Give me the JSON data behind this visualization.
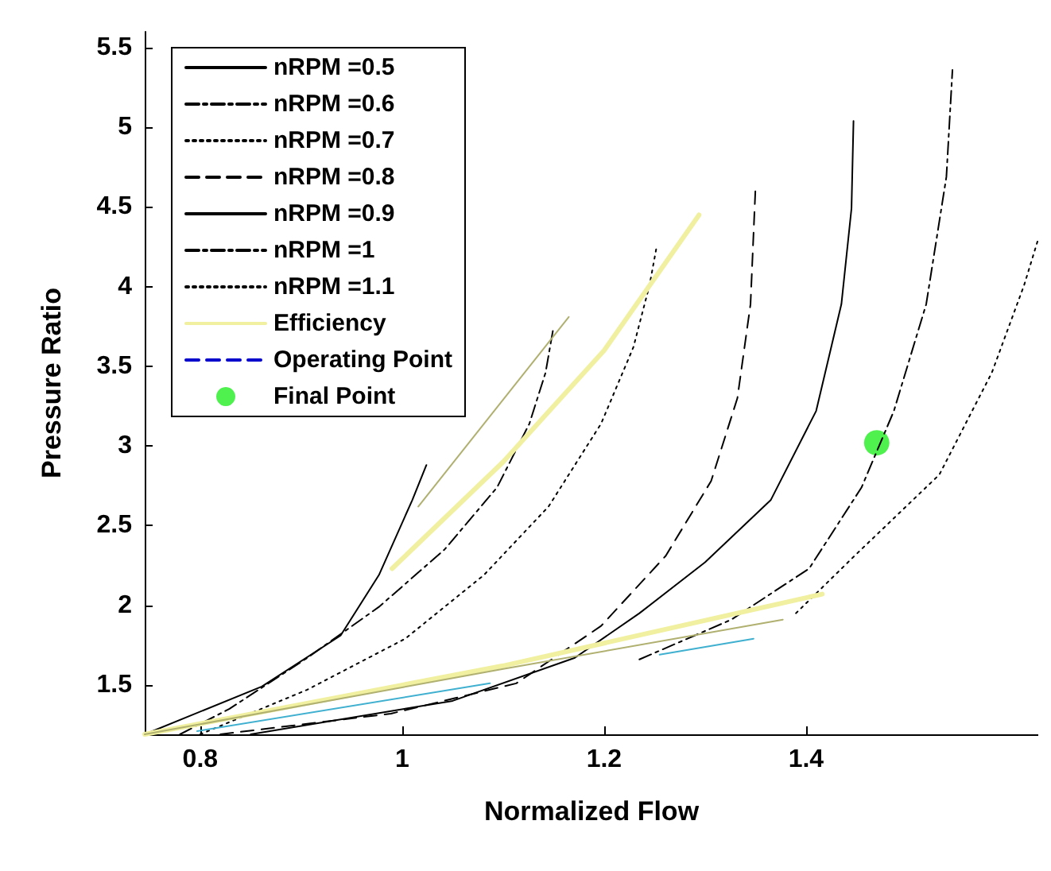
{
  "chart_data": {
    "type": "line",
    "xlabel": "Normalized Flow",
    "ylabel": "Pressure Ratio",
    "xlim": [
      0.745,
      1.63
    ],
    "ylim": [
      1.19,
      5.6
    ],
    "xticks": [
      0.8,
      1,
      1.2,
      1.4
    ],
    "yticks": [
      1.5,
      2,
      2.5,
      3,
      3.5,
      4,
      4.5,
      5,
      5.5
    ],
    "grid": false,
    "legend": "top left",
    "marker": "none",
    "series": [
      {
        "name": "nRPM =0.5",
        "color": "#000000",
        "line_style": "solid",
        "x": [
          0.745,
          0.861,
          0.939,
          0.977,
          1.01,
          1.024
        ],
        "values": [
          1.19,
          1.49,
          1.81,
          2.19,
          2.66,
          2.88
        ]
      },
      {
        "name": "nRPM =0.6",
        "color": "#000000",
        "line_style": "dashdot",
        "x": [
          0.78,
          0.829,
          0.906,
          0.977,
          1.042,
          1.094,
          1.126,
          1.142,
          1.15
        ],
        "values": [
          1.19,
          1.35,
          1.67,
          1.99,
          2.35,
          2.74,
          3.14,
          3.46,
          3.75
        ]
      },
      {
        "name": "nRPM =0.7",
        "color": "#000000",
        "line_style": "dotted",
        "x": [
          0.8,
          0.906,
          1.003,
          1.081,
          1.145,
          1.197,
          1.229,
          1.245,
          1.252
        ],
        "values": [
          1.19,
          1.47,
          1.79,
          2.19,
          2.62,
          3.14,
          3.62,
          4.01,
          4.25
        ]
      },
      {
        "name": "nRPM =0.8",
        "color": "#000000",
        "line_style": "dashed",
        "x": [
          0.82,
          0.989,
          1.113,
          1.197,
          1.261,
          1.306,
          1.332,
          1.345,
          1.35
        ],
        "values": [
          1.19,
          1.32,
          1.51,
          1.87,
          2.31,
          2.78,
          3.3,
          3.89,
          4.63
        ]
      },
      {
        "name": "nRPM =0.9",
        "color": "#000000",
        "line_style": "solid",
        "x": [
          0.85,
          1.05,
          1.171,
          1.235,
          1.3,
          1.365,
          1.41,
          1.435,
          1.445,
          1.447
        ],
        "values": [
          1.19,
          1.4,
          1.67,
          1.95,
          2.27,
          2.66,
          3.22,
          3.89,
          4.49,
          5.04
        ]
      },
      {
        "name": "nRPM =1",
        "color": "#000000",
        "line_style": "dashdot",
        "x": [
          1.235,
          1.326,
          1.403,
          1.455,
          1.487,
          1.519,
          1.539,
          1.545
        ],
        "values": [
          1.66,
          1.91,
          2.23,
          2.74,
          3.22,
          3.89,
          4.69,
          5.36
        ]
      },
      {
        "name": "nRPM =1.1",
        "color": "#000000",
        "line_style": "dotted",
        "x": [
          1.39,
          1.448,
          1.532,
          1.584,
          1.616,
          1.63
        ],
        "values": [
          1.95,
          2.31,
          2.82,
          3.46,
          4.01,
          4.3
        ]
      },
      {
        "name": "Efficiency",
        "color": "#f0f0a0",
        "line_style": "solid",
        "x": [
          0.99,
          1.1,
          1.2,
          1.294
        ],
        "values": [
          2.23,
          2.9,
          3.6,
          4.45
        ]
      },
      {
        "color": "#b0b070",
        "line_style": "solid",
        "x": [
          1.016,
          1.165
        ],
        "values": [
          2.62,
          3.81
        ]
      },
      {
        "color": "#f0f0a0",
        "line_style": "solid",
        "x": [
          0.745,
          1.1,
          1.416
        ],
        "values": [
          1.19,
          1.62,
          2.07
        ]
      },
      {
        "color": "#b0b070",
        "line_style": "solid",
        "x": [
          0.745,
          1.1,
          1.377
        ],
        "values": [
          1.19,
          1.6,
          1.91
        ]
      },
      {
        "color": "#40b0d0",
        "line_style": "solid",
        "x": [
          0.797,
          1.087
        ],
        "values": [
          1.21,
          1.51
        ]
      },
      {
        "color": "#40b0d0",
        "line_style": "solid",
        "x": [
          1.255,
          1.348
        ],
        "values": [
          1.69,
          1.79
        ]
      },
      {
        "name": "Operating Point",
        "color": "#0000cc",
        "line_style": "dashed"
      },
      {
        "name": "Final Point",
        "type": "scatter",
        "marker": "circle",
        "color": "#22ee22",
        "x": [
          1.47
        ],
        "values": [
          3.02
        ]
      }
    ]
  }
}
